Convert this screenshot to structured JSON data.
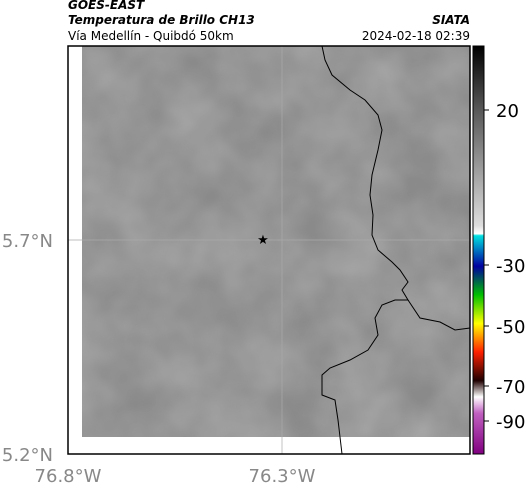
{
  "header": {
    "satellite": "GOES-EAST",
    "product": "Temperatura de Brillo CH13",
    "location": "Vía Medellín - Quibdó 50km",
    "source": "SIATA",
    "datetime": "2024-02-18 02:39"
  },
  "map": {
    "lat_ticks": [
      "5.7°N",
      "5.2°N"
    ],
    "lon_ticks": [
      "76.8°W",
      "76.3°W"
    ]
  },
  "colorbar": {
    "ticks": [
      "20",
      "-30",
      "-50",
      "-70",
      "-90"
    ]
  }
}
